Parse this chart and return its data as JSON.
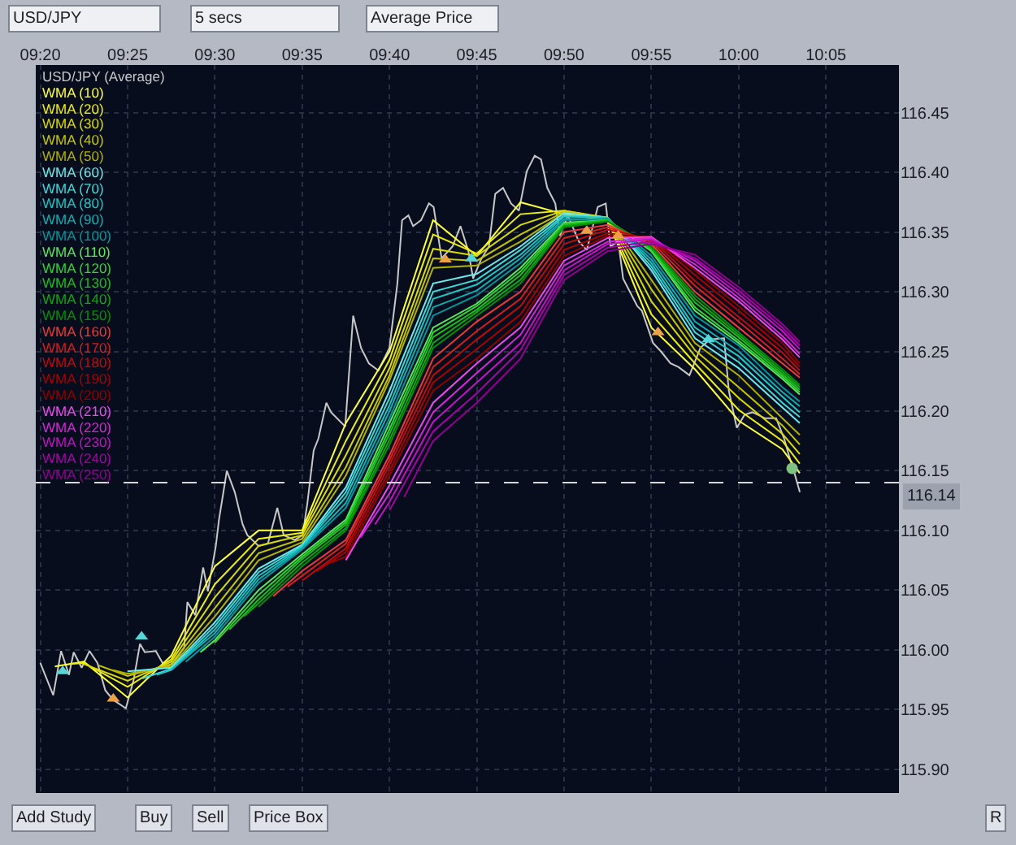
{
  "chart_data": {
    "type": "line",
    "annotations": [
      "USD/JPY",
      "5 secs",
      "Average Price",
      "Add Study",
      "Buy",
      "Sell",
      "Price Box",
      "R"
    ],
    "xlim": [
      9.329,
      10.153
    ],
    "xticks": [
      {
        "value": 9.3333,
        "label": "09:20"
      },
      {
        "value": 9.4167,
        "label": "09:25"
      },
      {
        "value": 9.5,
        "label": "09:30"
      },
      {
        "value": 9.5833,
        "label": "09:35"
      },
      {
        "value": 9.6667,
        "label": "09:40"
      },
      {
        "value": 9.75,
        "label": "09:45"
      },
      {
        "value": 9.8333,
        "label": "09:50"
      },
      {
        "value": 9.9167,
        "label": "09:55"
      },
      {
        "value": 10.0,
        "label": "10:00"
      },
      {
        "value": 10.0833,
        "label": "10:05"
      }
    ],
    "ylim": [
      115.88,
      116.49
    ],
    "yticks": [
      {
        "value": 115.9,
        "label": "115.90"
      },
      115.95,
      {
        "value": 116.0,
        "label": "116.00"
      },
      116.05,
      {
        "value": 116.1,
        "label": "116.10"
      },
      116.15,
      {
        "value": 116.2,
        "label": "116.20"
      },
      116.25,
      {
        "value": 116.3,
        "label": "116.30"
      },
      116.35,
      {
        "value": 116.4,
        "label": "116.40"
      },
      116.45
    ],
    "grid": true,
    "legend": "top left",
    "ref_lines": [
      {
        "axis": "y",
        "value": 116.14,
        "label": "116.14",
        "color": "#d8d8d8",
        "line_style": "dashed"
      }
    ],
    "series": [
      {
        "name": "USD/JPY (Average)",
        "color": "#c8c8c8",
        "x": [
          9.3333,
          9.3457,
          9.3532,
          9.3607,
          9.3652,
          9.3728,
          9.3803,
          9.3879,
          9.3954,
          9.4029,
          9.415,
          9.4225,
          9.4285,
          9.4331,
          9.4436,
          9.4526,
          9.4602,
          9.4707,
          9.4737,
          9.4813,
          9.4888,
          9.4933,
          9.5009,
          9.5039,
          9.5114,
          9.519,
          9.5265,
          9.531,
          9.5416,
          9.5506,
          9.5596,
          9.5657,
          9.5762,
          9.5838,
          9.5883,
          9.5943,
          9.5988,
          9.6064,
          9.6109,
          9.6244,
          9.632,
          9.6395,
          9.647,
          9.6561,
          9.6666,
          9.6742,
          9.6787,
          9.6847,
          9.6892,
          9.6968,
          9.7043,
          9.7088,
          9.7164,
          9.7269,
          9.7344,
          9.742,
          9.7465,
          9.754,
          9.7616,
          9.7676,
          9.7751,
          9.7827,
          9.7902,
          9.7977,
          9.8053,
          9.8113,
          9.8173,
          9.8249,
          9.8294,
          9.8369,
          9.8475,
          9.855,
          9.8655,
          9.8731,
          9.8776,
          9.8851,
          9.8897,
          9.9032,
          9.9077,
          9.9183,
          9.9258,
          9.9349,
          9.9424,
          9.953,
          9.9635,
          9.9725,
          9.9861,
          9.9906,
          9.9982,
          10.0057,
          10.0132,
          10.0253,
          10.0358,
          10.0434,
          10.0479,
          10.0539,
          10.0584
        ],
        "values": [
          115.989,
          115.962,
          115.999,
          115.979,
          115.998,
          115.985,
          115.999,
          115.989,
          115.966,
          115.958,
          115.951,
          115.975,
          116.005,
          115.998,
          115.999,
          115.985,
          115.989,
          116.002,
          116.04,
          116.029,
          116.069,
          116.049,
          116.087,
          116.109,
          116.15,
          116.132,
          116.105,
          116.096,
          116.087,
          116.089,
          116.119,
          116.096,
          116.092,
          116.096,
          116.123,
          116.167,
          116.177,
          116.207,
          116.199,
          116.187,
          116.28,
          116.253,
          116.24,
          116.234,
          116.253,
          116.307,
          116.36,
          116.364,
          116.355,
          116.36,
          116.374,
          116.371,
          116.328,
          116.338,
          116.355,
          116.334,
          116.311,
          116.327,
          116.338,
          116.382,
          116.387,
          116.374,
          116.368,
          116.401,
          116.414,
          116.411,
          116.387,
          116.374,
          116.347,
          116.364,
          116.342,
          116.335,
          116.371,
          116.374,
          116.338,
          116.342,
          116.311,
          116.288,
          116.284,
          116.257,
          116.25,
          116.24,
          116.237,
          116.23,
          116.253,
          116.26,
          116.261,
          116.217,
          116.186,
          116.197,
          116.199,
          116.194,
          116.194,
          116.177,
          116.163,
          116.146,
          116.132
        ]
      },
      {
        "name": "WMA (10)",
        "color": "#ffff3c",
        "x": [
          9.3472,
          9.375,
          9.4167,
          9.4583,
          9.5,
          9.5417,
          9.5833,
          9.625,
          9.6667,
          9.7083,
          9.75,
          9.7917,
          9.8333,
          9.875,
          9.9167,
          9.9583,
          10.0,
          10.0417,
          10.0583
        ],
        "values": [
          115.986,
          115.99,
          115.96,
          115.995,
          116.07,
          116.1,
          116.1,
          116.19,
          116.25,
          116.36,
          116.33,
          116.375,
          116.365,
          116.36,
          116.27,
          116.235,
          116.192,
          116.168,
          116.148
        ]
      },
      {
        "name": "WMA (20)",
        "color": "#eeee10",
        "x": [
          9.3611,
          9.375,
          9.4167,
          9.4583,
          9.5,
          9.5417,
          9.5833,
          9.625,
          9.6667,
          9.7083,
          9.75,
          9.7917,
          9.8333,
          9.875,
          9.9167,
          9.9583,
          10.0,
          10.0417,
          10.0583
        ],
        "values": [
          115.988,
          115.989,
          115.969,
          115.992,
          116.055,
          116.093,
          116.098,
          116.175,
          116.243,
          116.348,
          116.332,
          116.365,
          116.368,
          116.361,
          116.281,
          116.24,
          116.201,
          116.175,
          116.156
        ]
      },
      {
        "name": "WMA (30)",
        "color": "#dcdc00",
        "x": [
          9.375,
          9.4167,
          9.4583,
          9.5,
          9.5417,
          9.5833,
          9.625,
          9.6667,
          9.7083,
          9.75,
          9.7917,
          9.8333,
          9.875,
          9.9167,
          9.9583,
          10.0,
          10.0417,
          10.0583
        ],
        "values": [
          115.988,
          115.974,
          115.99,
          116.044,
          116.087,
          116.096,
          116.163,
          116.236,
          116.336,
          116.33,
          116.356,
          116.368,
          116.362,
          116.292,
          116.246,
          116.211,
          116.181,
          116.164
        ]
      },
      {
        "name": "WMA (40)",
        "color": "#c8c800",
        "x": [
          9.3889,
          9.4167,
          9.4583,
          9.5,
          9.5417,
          9.5833,
          9.625,
          9.6667,
          9.7083,
          9.75,
          9.7917,
          9.8333,
          9.875,
          9.9167,
          9.9583,
          10.0,
          10.0417,
          10.0583
        ],
        "values": [
          115.987,
          115.978,
          115.988,
          116.035,
          116.081,
          116.093,
          116.153,
          116.23,
          116.328,
          116.326,
          116.348,
          116.367,
          116.362,
          116.302,
          116.251,
          116.22,
          116.188,
          116.172
        ]
      },
      {
        "name": "WMA (50)",
        "color": "#b2b200",
        "x": [
          9.4028,
          9.4167,
          9.4583,
          9.5,
          9.5417,
          9.5833,
          9.625,
          9.6667,
          9.7083,
          9.75,
          9.7917,
          9.8333,
          9.875,
          9.9167,
          9.9583,
          10.0,
          10.0417,
          10.0583
        ],
        "values": [
          115.983,
          115.98,
          115.986,
          116.028,
          116.075,
          116.09,
          116.146,
          116.226,
          116.32,
          116.322,
          116.342,
          116.366,
          116.362,
          116.31,
          116.257,
          116.23,
          116.194,
          116.18
        ]
      },
      {
        "name": "WMA (60)",
        "color": "#6eeaea",
        "x": [
          9.4167,
          9.4583,
          9.5,
          9.5417,
          9.5833,
          9.625,
          9.6667,
          9.7083,
          9.75,
          9.7917,
          9.8333,
          9.875,
          9.9167,
          9.9583,
          10.0,
          10.0417,
          10.0583
        ],
        "values": [
          115.982,
          115.985,
          116.023,
          116.068,
          116.088,
          116.136,
          116.217,
          116.307,
          116.315,
          116.338,
          116.366,
          116.362,
          116.318,
          116.261,
          116.236,
          116.203,
          116.19
        ]
      },
      {
        "name": "WMA (70)",
        "color": "#40dada",
        "x": [
          9.4306,
          9.4583,
          9.5,
          9.5417,
          9.5833,
          9.625,
          9.6667,
          9.7083,
          9.75,
          9.7917,
          9.8333,
          9.875,
          9.9167,
          9.9583,
          10.0,
          10.0417,
          10.0583
        ],
        "values": [
          115.976,
          115.984,
          116.02,
          116.065,
          116.087,
          116.132,
          116.211,
          116.3,
          116.31,
          116.335,
          116.364,
          116.362,
          116.321,
          116.266,
          116.241,
          116.207,
          116.195
        ]
      },
      {
        "name": "WMA (80)",
        "color": "#1ec6c6",
        "x": [
          9.4444,
          9.4583,
          9.5,
          9.5417,
          9.5833,
          9.625,
          9.6667,
          9.7083,
          9.75,
          9.7917,
          9.8333,
          9.875,
          9.9167,
          9.9583,
          10.0,
          10.0417,
          10.0583
        ],
        "values": [
          115.979,
          115.983,
          116.017,
          116.062,
          116.086,
          116.128,
          116.205,
          116.294,
          116.306,
          116.331,
          116.363,
          116.362,
          116.324,
          116.27,
          116.246,
          116.212,
          116.199
        ]
      },
      {
        "name": "WMA (90)",
        "color": "#0fb0b4",
        "x": [
          9.4583,
          9.5,
          9.5417,
          9.5833,
          9.625,
          9.6667,
          9.7083,
          9.75,
          9.7917,
          9.8333,
          9.875,
          9.9167,
          9.9583,
          10.0,
          10.0417,
          10.0583
        ],
        "values": [
          115.983,
          116.014,
          116.059,
          116.085,
          116.123,
          116.2,
          116.287,
          116.301,
          116.328,
          116.361,
          116.361,
          116.327,
          116.275,
          116.25,
          116.216,
          116.204
        ]
      },
      {
        "name": "WMA (100)",
        "color": "#00989e",
        "x": [
          9.4722,
          9.5,
          9.5417,
          9.5833,
          9.625,
          9.6667,
          9.7083,
          9.75,
          9.7917,
          9.8333,
          9.875,
          9.9167,
          9.9583,
          10.0,
          10.0417,
          10.0583
        ],
        "values": [
          115.99,
          116.011,
          116.056,
          116.084,
          116.119,
          116.194,
          116.28,
          116.297,
          116.324,
          116.36,
          116.361,
          116.33,
          116.28,
          116.255,
          116.22,
          116.208
        ]
      },
      {
        "name": "WMA (110)",
        "color": "#5ee65e",
        "x": [
          9.4861,
          9.5,
          9.5417,
          9.5833,
          9.625,
          9.6667,
          9.7083,
          9.75,
          9.7917,
          9.8333,
          9.875,
          9.9167,
          9.9583,
          10.0,
          10.0417,
          10.0583
        ],
        "values": [
          115.998,
          116.008,
          116.05,
          116.08,
          116.109,
          116.19,
          116.27,
          116.29,
          116.32,
          116.358,
          116.36,
          116.334,
          116.284,
          116.257,
          116.227,
          116.214
        ]
      },
      {
        "name": "WMA (120)",
        "color": "#34d434",
        "x": [
          9.5,
          9.5417,
          9.5833,
          9.625,
          9.6667,
          9.7083,
          9.75,
          9.7917,
          9.8333,
          9.875,
          9.9167,
          9.9583,
          10.0,
          10.0417,
          10.0583
        ],
        "values": [
          116.006,
          116.046,
          116.078,
          116.107,
          116.185,
          116.266,
          116.288,
          116.317,
          116.357,
          116.36,
          116.335,
          116.287,
          116.259,
          116.229,
          116.216
        ]
      },
      {
        "name": "WMA (130)",
        "color": "#1cc01c",
        "x": [
          9.5139,
          9.5417,
          9.5833,
          9.625,
          9.6667,
          9.7083,
          9.75,
          9.7917,
          9.8333,
          9.875,
          9.9167,
          9.9583,
          10.0,
          10.0417,
          10.0583
        ],
        "values": [
          116.017,
          116.042,
          116.076,
          116.105,
          116.181,
          116.262,
          116.285,
          116.314,
          116.356,
          116.36,
          116.336,
          116.291,
          116.262,
          116.231,
          116.218
        ]
      },
      {
        "name": "WMA (140)",
        "color": "#10a810",
        "x": [
          9.5278,
          9.5417,
          9.5833,
          9.625,
          9.6667,
          9.7083,
          9.75,
          9.7917,
          9.8333,
          9.875,
          9.9167,
          9.9583,
          10.0,
          10.0417,
          10.0583
        ],
        "values": [
          116.028,
          116.039,
          116.073,
          116.102,
          116.176,
          116.257,
          116.283,
          116.31,
          116.355,
          116.359,
          116.337,
          116.294,
          116.264,
          116.233,
          116.22
        ]
      },
      {
        "name": "WMA (150)",
        "color": "#069006",
        "x": [
          9.5417,
          9.5833,
          9.625,
          9.6667,
          9.7083,
          9.75,
          9.7917,
          9.8333,
          9.875,
          9.9167,
          9.9583,
          10.0,
          10.0417,
          10.0583
        ],
        "values": [
          116.036,
          116.07,
          116.1,
          116.172,
          116.253,
          116.28,
          116.307,
          116.354,
          116.359,
          116.338,
          116.297,
          116.266,
          116.235,
          116.222
        ]
      },
      {
        "name": "WMA (160)",
        "color": "#ee3a3a",
        "x": [
          9.5556,
          9.5833,
          9.625,
          9.6667,
          9.7083,
          9.75,
          9.7917,
          9.8333,
          9.875,
          9.9167,
          9.9583,
          10.0,
          10.0417,
          10.0583
        ],
        "values": [
          116.045,
          116.066,
          116.092,
          116.163,
          116.244,
          116.275,
          116.3,
          116.35,
          116.356,
          116.34,
          116.3,
          116.27,
          116.24,
          116.228
        ]
      },
      {
        "name": "WMA (170)",
        "color": "#d81e1e",
        "x": [
          9.5694,
          9.5833,
          9.625,
          9.6667,
          9.7083,
          9.75,
          9.7917,
          9.8333,
          9.875,
          9.9167,
          9.9583,
          10.0,
          10.0417,
          10.0583
        ],
        "values": [
          116.053,
          116.062,
          116.089,
          116.159,
          116.237,
          116.267,
          116.294,
          116.345,
          116.354,
          116.342,
          116.305,
          116.275,
          116.244,
          116.231
        ]
      },
      {
        "name": "WMA (180)",
        "color": "#c20a0a",
        "x": [
          9.5833,
          9.625,
          9.6667,
          9.7083,
          9.75,
          9.7917,
          9.8333,
          9.875,
          9.9167,
          9.9583,
          10.0,
          10.0417,
          10.0583
        ],
        "values": [
          116.058,
          116.085,
          116.155,
          116.23,
          116.26,
          116.288,
          116.34,
          116.352,
          116.344,
          116.309,
          116.279,
          116.249,
          116.234
        ]
      },
      {
        "name": "WMA (190)",
        "color": "#aa0000",
        "x": [
          9.5972,
          9.625,
          9.6667,
          9.7083,
          9.75,
          9.7917,
          9.8333,
          9.875,
          9.9167,
          9.9583,
          10.0,
          10.0417,
          10.0583
        ],
        "values": [
          116.066,
          116.082,
          116.15,
          116.224,
          116.252,
          116.281,
          116.335,
          116.349,
          116.345,
          116.314,
          116.284,
          116.253,
          116.237
        ]
      },
      {
        "name": "WMA (200)",
        "color": "#920000",
        "x": [
          9.6111,
          9.625,
          9.6667,
          9.7083,
          9.75,
          9.7917,
          9.8333,
          9.875,
          9.9167,
          9.9583,
          10.0,
          10.0417,
          10.0583
        ],
        "values": [
          116.073,
          116.078,
          116.146,
          116.217,
          116.244,
          116.275,
          116.33,
          116.347,
          116.346,
          116.318,
          116.288,
          116.257,
          116.24
        ]
      },
      {
        "name": "WMA (210)",
        "color": "#ee4aee",
        "x": [
          9.625,
          9.6667,
          9.7083,
          9.75,
          9.7917,
          9.8333,
          9.875,
          9.9167,
          9.9583,
          10.0,
          10.0417,
          10.0583
        ],
        "values": [
          116.075,
          116.138,
          116.207,
          116.24,
          116.27,
          116.326,
          116.345,
          116.346,
          116.32,
          116.292,
          116.26,
          116.245
        ]
      },
      {
        "name": "WMA (220)",
        "color": "#da26da",
        "x": [
          9.6389,
          9.6667,
          9.7083,
          9.75,
          9.7917,
          9.8333,
          9.875,
          9.9167,
          9.9583,
          10.0,
          10.0417,
          10.0583
        ],
        "values": [
          116.094,
          116.131,
          116.199,
          116.232,
          116.264,
          116.322,
          116.342,
          116.345,
          116.323,
          116.295,
          116.263,
          116.248
        ]
      },
      {
        "name": "WMA (230)",
        "color": "#c412c4",
        "x": [
          9.6528,
          9.6667,
          9.7083,
          9.75,
          9.7917,
          9.8333,
          9.875,
          9.9167,
          9.9583,
          10.0,
          10.0417,
          10.0583
        ],
        "values": [
          116.105,
          116.124,
          116.191,
          116.224,
          116.257,
          116.318,
          116.34,
          116.344,
          116.326,
          116.298,
          116.267,
          116.252
        ]
      },
      {
        "name": "WMA (240)",
        "color": "#aa00aa",
        "x": [
          9.6667,
          9.7083,
          9.75,
          9.7917,
          9.8333,
          9.875,
          9.9167,
          9.9583,
          10.0,
          10.0417,
          10.0583
        ],
        "values": [
          116.117,
          116.183,
          116.215,
          116.251,
          116.314,
          116.337,
          116.342,
          116.328,
          116.301,
          116.27,
          116.255
        ]
      },
      {
        "name": "WMA (250)",
        "color": "#920092",
        "x": [
          9.6806,
          9.7083,
          9.75,
          9.7917,
          9.8333,
          9.875,
          9.9167,
          9.9583,
          10.0,
          10.0417,
          10.0583
        ],
        "values": [
          116.128,
          116.175,
          116.207,
          116.244,
          116.31,
          116.334,
          116.34,
          116.331,
          116.304,
          116.273,
          116.258
        ]
      },
      {
        "type": "scatter",
        "marker": "triangle",
        "color": "#56d6d6",
        "x": [
          9.3547,
          9.43,
          9.745,
          9.971
        ],
        "values": [
          115.982,
          116.011,
          116.328,
          116.26
        ]
      },
      {
        "type": "scatter",
        "marker": "triangle",
        "color": "#eea048",
        "x": [
          9.403,
          9.72,
          9.855,
          9.885,
          9.923
        ],
        "values": [
          115.959,
          116.327,
          116.351,
          116.347,
          116.266
        ]
      },
      {
        "type": "scatter",
        "marker": "circle",
        "color": "#80c080",
        "x": [
          10.051
        ],
        "values": [
          116.152
        ]
      }
    ]
  }
}
